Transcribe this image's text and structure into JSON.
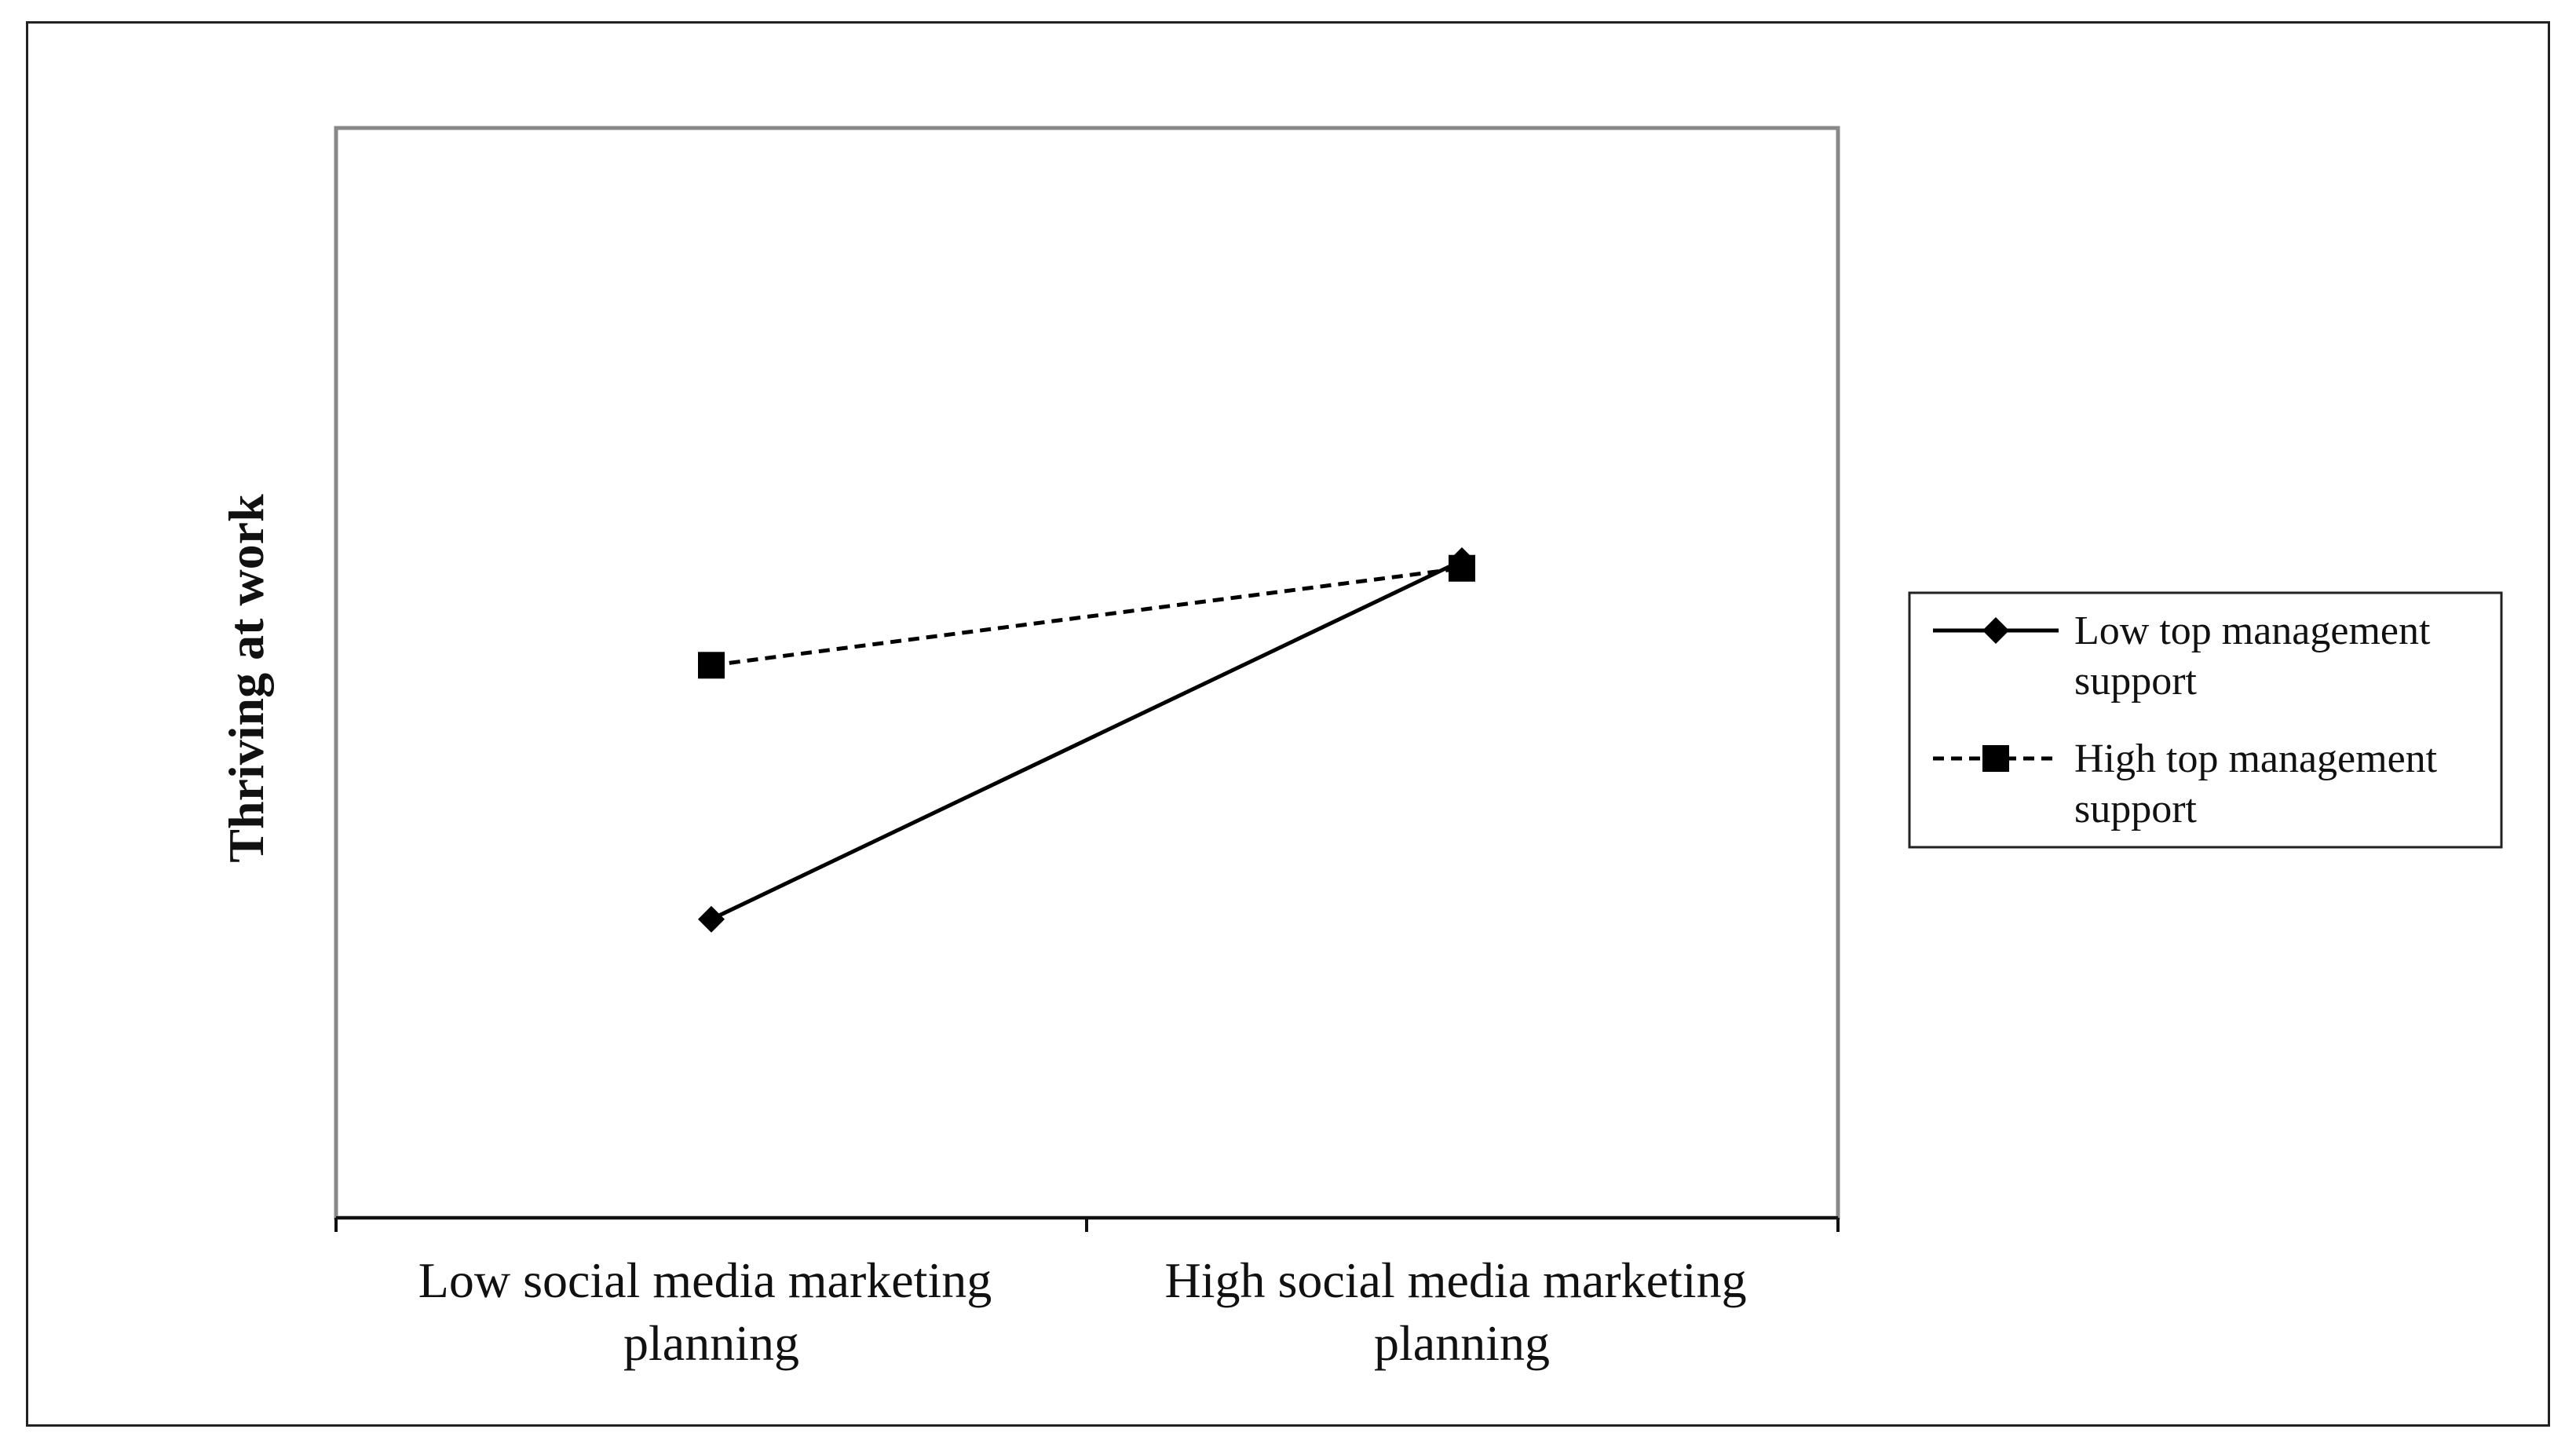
{
  "chart_data": {
    "type": "line",
    "ylabel": "Thriving at work",
    "xlabel": "",
    "categories": [
      [
        "Low social media marketing",
        "planning"
      ],
      [
        "High social media marketing",
        "planning"
      ]
    ],
    "series": [
      {
        "name": [
          "Low top management",
          "support"
        ],
        "values": [
          1.74,
          5.03
        ],
        "line_style": "solid",
        "marker": "diamond",
        "color": "#000000"
      },
      {
        "name": [
          "High top management",
          "support"
        ],
        "values": [
          4.07,
          4.96
        ],
        "line_style": "dashed",
        "marker": "square",
        "color": "#000000"
      }
    ],
    "ylim": [
      -1,
      9
    ],
    "grid": false,
    "legend_position": "right"
  }
}
